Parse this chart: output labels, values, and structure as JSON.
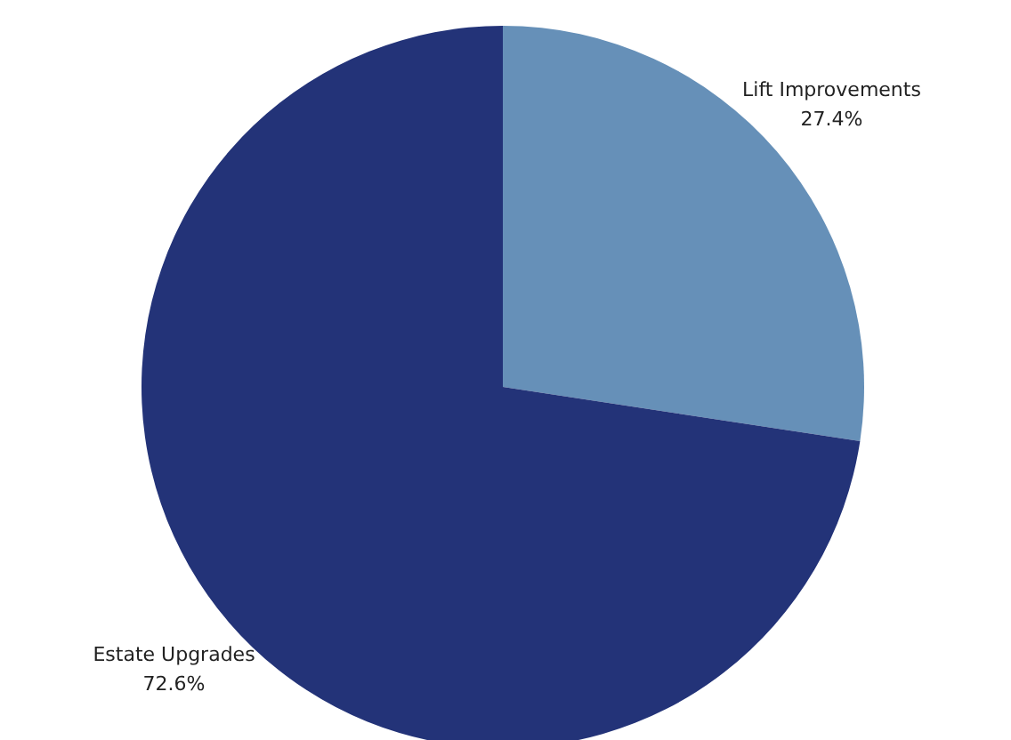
{
  "chart_data": {
    "type": "pie",
    "categories": [
      "Lift Improvements",
      "Estate Upgrades"
    ],
    "values": [
      27.4,
      72.6
    ],
    "colors": [
      "#6690b8",
      "#233378"
    ],
    "value_labels": [
      "27.4%",
      "72.6%"
    ]
  }
}
